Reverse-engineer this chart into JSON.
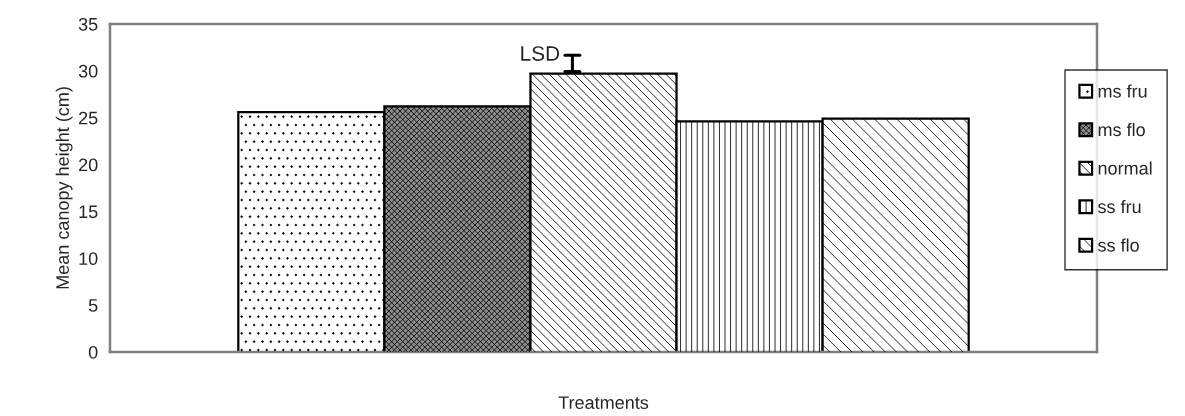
{
  "chart_data": {
    "type": "bar",
    "xlabel": "Treatments",
    "ylabel": "Mean canopy height (cm)",
    "categories": [
      null
    ],
    "series": [
      {
        "name": "ms fru",
        "color": "#ffffff",
        "values": [
          25.6
        ]
      },
      {
        "name": "ms flo",
        "color": "#8c8c8c",
        "values": [
          26.2
        ]
      },
      {
        "name": "normal",
        "color": "#ffffff",
        "values": [
          29.7
        ]
      },
      {
        "name": "ss fru",
        "color": "#ffffff",
        "values": [
          24.6
        ]
      },
      {
        "name": "ss flo",
        "color": "#ffffff",
        "values": [
          24.9
        ]
      }
    ],
    "ylim": [
      0,
      35
    ],
    "yticks": [
      0,
      5,
      10,
      15,
      20,
      25,
      30,
      35
    ],
    "annotations": [
      "LSD"
    ],
    "grid": false,
    "legend": "right"
  }
}
